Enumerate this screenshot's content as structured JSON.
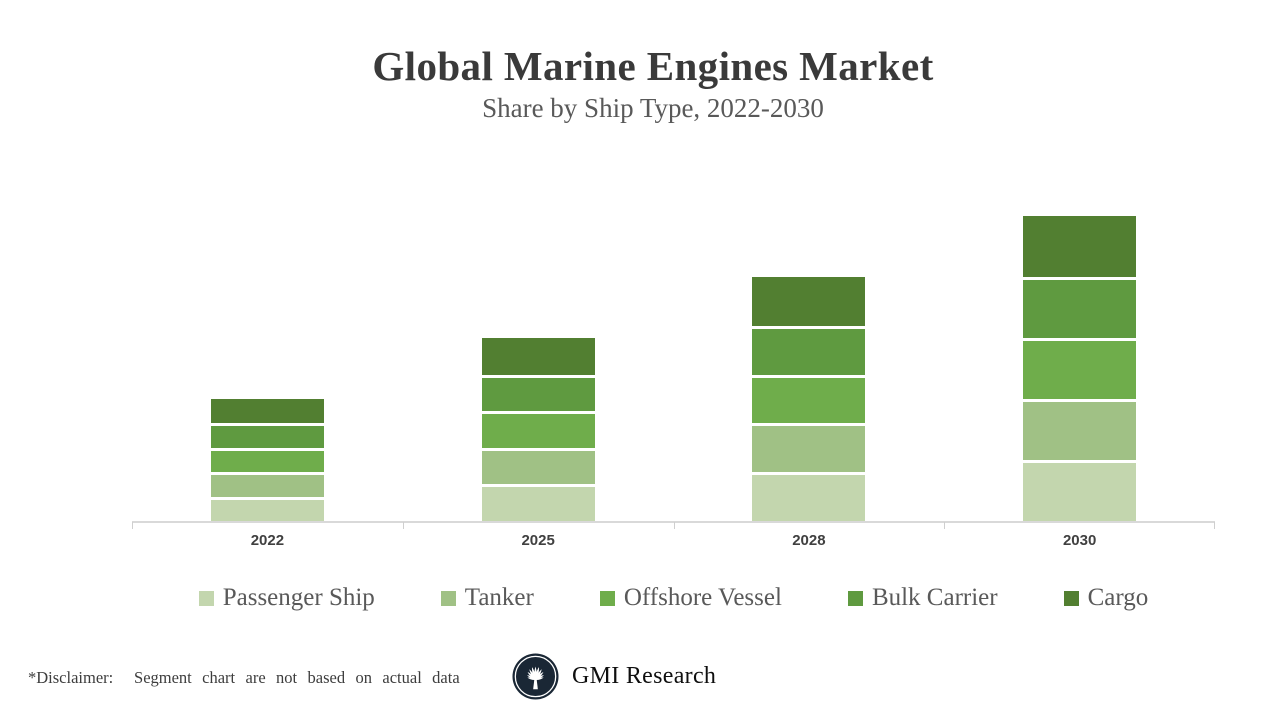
{
  "title": "Global Marine Engines Market",
  "subtitle": "Share by Ship Type, 2022-2030",
  "chart_data": {
    "type": "bar",
    "stacked": true,
    "title": "Global Marine Engines Market",
    "subtitle": "Share by Ship Type, 2022-2030",
    "categories": [
      "2022",
      "2025",
      "2028",
      "2030"
    ],
    "series": [
      {
        "name": "Passenger Ship",
        "color": "#c3d6ae",
        "values": [
          2,
          3,
          4,
          5
        ]
      },
      {
        "name": "Tanker",
        "color": "#a0c185",
        "values": [
          2,
          3,
          4,
          5
        ]
      },
      {
        "name": "Offshore Vessel",
        "color": "#6fad4b",
        "values": [
          2,
          3,
          4,
          5
        ]
      },
      {
        "name": "Bulk Carrier",
        "color": "#5f9a40",
        "values": [
          2,
          3,
          4,
          5
        ]
      },
      {
        "name": "Cargo",
        "color": "#527f31",
        "values": [
          2,
          3,
          4,
          5
        ]
      }
    ],
    "stack_order_bottom_to_top": [
      "Passenger Ship",
      "Tanker",
      "Offshore Vessel",
      "Bulk Carrier",
      "Cargo"
    ],
    "bar_totals": [
      10,
      15,
      20,
      25
    ],
    "ylim": [
      0,
      25
    ],
    "grid": false,
    "y_axis_visible": false,
    "axis_color": "#d9d9d9",
    "legend_position": "bottom"
  },
  "footer": {
    "disclaimer": "*Disclaimer:  Segment chart are not based on actual data",
    "brand": "GMI Research"
  }
}
